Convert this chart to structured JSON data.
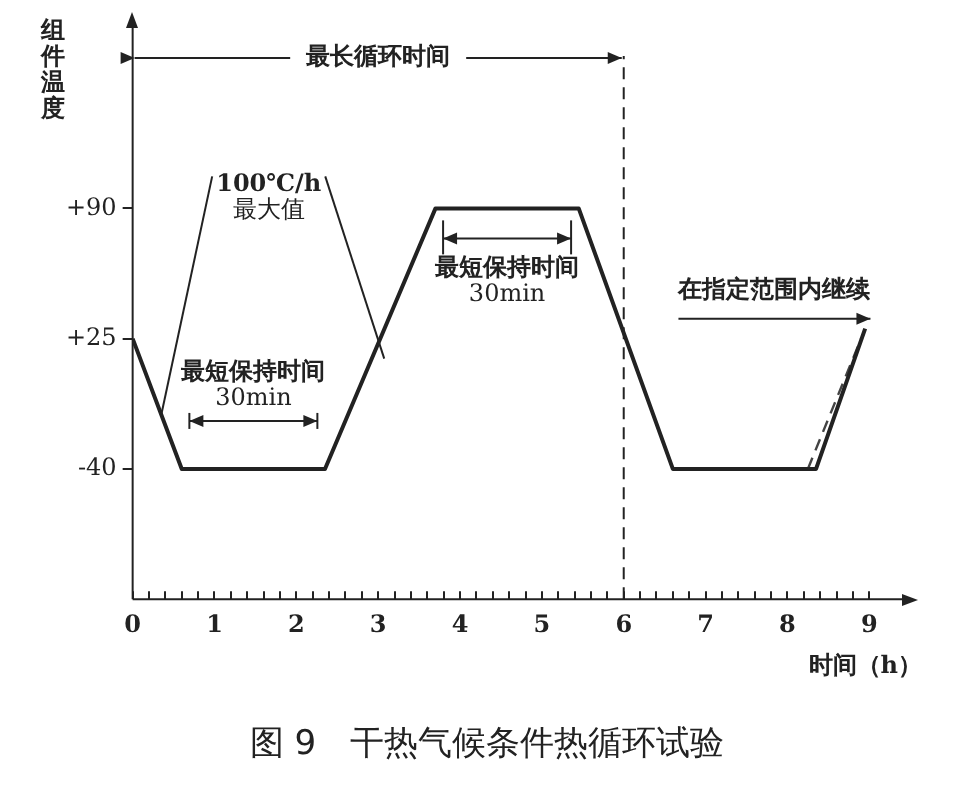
{
  "chart_data": {
    "type": "line",
    "title": "图 9　干热气候条件热循环试验",
    "xlabel": "时间（h）",
    "ylabel": "组件温度",
    "x": [
      0,
      0.6,
      2.35,
      3.7,
      5.45,
      6.6,
      8.35,
      8.95
    ],
    "series": [
      {
        "color": "#222222",
        "values": [
          25,
          -40,
          -40,
          90,
          90,
          -40,
          -40,
          30
        ]
      },
      {
        "color": "#444444",
        "line_style": "dashed",
        "x": [
          8.25,
          8.9
        ],
        "values": [
          -40,
          25
        ]
      }
    ],
    "xlim": [
      0,
      9.4
    ],
    "xticks": [
      0,
      {
        "value": 0.2,
        "label": null
      },
      {
        "value": 0.4,
        "label": null
      },
      {
        "value": 0.6,
        "label": null
      },
      {
        "value": 0.8,
        "label": null
      },
      1,
      {
        "value": 1.2,
        "label": null
      },
      {
        "value": 1.4,
        "label": null
      },
      {
        "value": 1.6,
        "label": null
      },
      {
        "value": 1.8,
        "label": null
      },
      2,
      {
        "value": 2.2,
        "label": null
      },
      {
        "value": 2.4,
        "label": null
      },
      {
        "value": 2.6,
        "label": null
      },
      {
        "value": 2.8,
        "label": null
      },
      3,
      {
        "value": 3.2,
        "label": null
      },
      {
        "value": 3.4,
        "label": null
      },
      {
        "value": 3.6,
        "label": null
      },
      {
        "value": 3.8,
        "label": null
      },
      4,
      {
        "value": 4.2,
        "label": null
      },
      {
        "value": 4.4,
        "label": null
      },
      {
        "value": 4.6,
        "label": null
      },
      {
        "value": 4.8,
        "label": null
      },
      5,
      {
        "value": 5.2,
        "label": null
      },
      {
        "value": 5.4,
        "label": null
      },
      {
        "value": 5.6,
        "label": null
      },
      {
        "value": 5.8,
        "label": null
      },
      6,
      {
        "value": 6.2,
        "label": null
      },
      {
        "value": 6.4,
        "label": null
      },
      {
        "value": 6.6,
        "label": null
      },
      {
        "value": 6.8,
        "label": null
      },
      7,
      {
        "value": 7.2,
        "label": null
      },
      {
        "value": 7.4,
        "label": null
      },
      {
        "value": 7.6,
        "label": null
      },
      {
        "value": 7.8,
        "label": null
      },
      8,
      {
        "value": 8.2,
        "label": null
      },
      {
        "value": 8.4,
        "label": null
      },
      {
        "value": 8.6,
        "label": null
      },
      {
        "value": 8.8,
        "label": null
      },
      9
    ],
    "ylim": [
      -105,
      180
    ],
    "yticks": [
      {
        "value": -40,
        "label": "-40"
      },
      {
        "value": 25,
        "label": "+25"
      },
      {
        "value": 90,
        "label": "+90"
      }
    ],
    "grid": false,
    "legend": false,
    "marker": "none",
    "line_style": "solid",
    "ref_lines": [
      {
        "axis": "x",
        "value": 6,
        "line_style": "dashed",
        "color": "#222222"
      }
    ],
    "annotations": [
      {
        "text": "最长循环时间",
        "x": 6,
        "y": 165
      },
      {
        "text": "100℃/h\n最大值",
        "x": 0.35,
        "y": -13
      },
      "最短保持时间\n30min",
      "最短保持时间\n30min",
      "在指定范围内继续"
    ]
  }
}
